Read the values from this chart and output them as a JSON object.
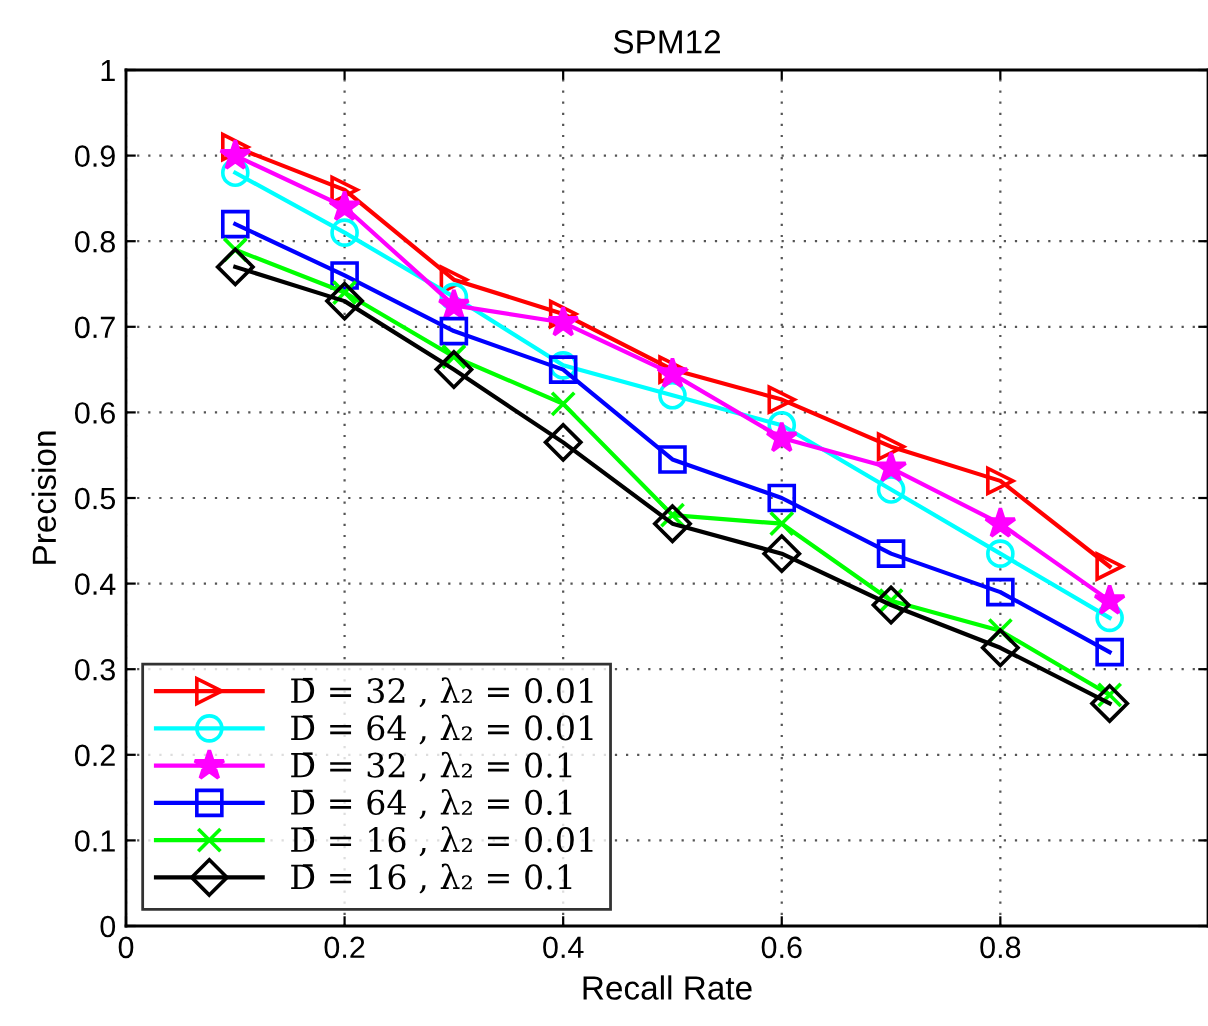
{
  "chart_data": {
    "type": "line",
    "title": "SPM12",
    "xlabel": "Recall Rate",
    "ylabel": "Precision",
    "x": [
      0.1,
      0.2,
      0.3,
      0.4,
      0.5,
      0.6,
      0.7,
      0.8,
      0.9
    ],
    "xlim": [
      0,
      0.99
    ],
    "xticks": [
      0,
      0.2,
      0.4,
      0.6,
      0.8
    ],
    "ylim": [
      0,
      1
    ],
    "yticks": [
      0,
      0.1,
      0.2,
      0.3,
      0.4,
      0.5,
      0.6,
      0.7,
      0.8,
      0.9,
      1
    ],
    "grid": true,
    "legend": "bottom left",
    "line_style": "solid",
    "series": [
      {
        "name": "D̄ = 32 , λ₂ = 0.01",
        "color": "#ff0000",
        "marker": "triangle",
        "values": [
          0.91,
          0.86,
          0.755,
          0.715,
          0.65,
          0.615,
          0.56,
          0.52,
          0.42
        ]
      },
      {
        "name": "D̄ = 64 , λ₂ = 0.01",
        "color": "#00ffff",
        "marker": "circle",
        "values": [
          0.88,
          0.81,
          0.735,
          0.655,
          0.62,
          0.585,
          0.51,
          0.435,
          0.36
        ]
      },
      {
        "name": "D̄ = 32 , λ₂ = 0.1",
        "color": "#ff00ff",
        "marker": "star",
        "values": [
          0.9,
          0.84,
          0.725,
          0.705,
          0.645,
          0.57,
          0.535,
          0.47,
          0.38
        ]
      },
      {
        "name": "D̄ = 64 , λ₂ = 0.1",
        "color": "#0000ff",
        "marker": "square",
        "values": [
          0.82,
          0.76,
          0.695,
          0.65,
          0.545,
          0.5,
          0.435,
          0.39,
          0.32
        ]
      },
      {
        "name": "D̄ = 16 , λ₂ = 0.01",
        "color": "#00ff00",
        "marker": "cross",
        "values": [
          0.79,
          0.74,
          0.665,
          0.61,
          0.48,
          0.47,
          0.38,
          0.345,
          0.27
        ]
      },
      {
        "name": "D̄ = 16 , λ₂ = 0.1",
        "color": "#000000",
        "marker": "diamond",
        "values": [
          0.77,
          0.73,
          0.65,
          0.565,
          0.47,
          0.435,
          0.375,
          0.325,
          0.26
        ]
      }
    ]
  }
}
